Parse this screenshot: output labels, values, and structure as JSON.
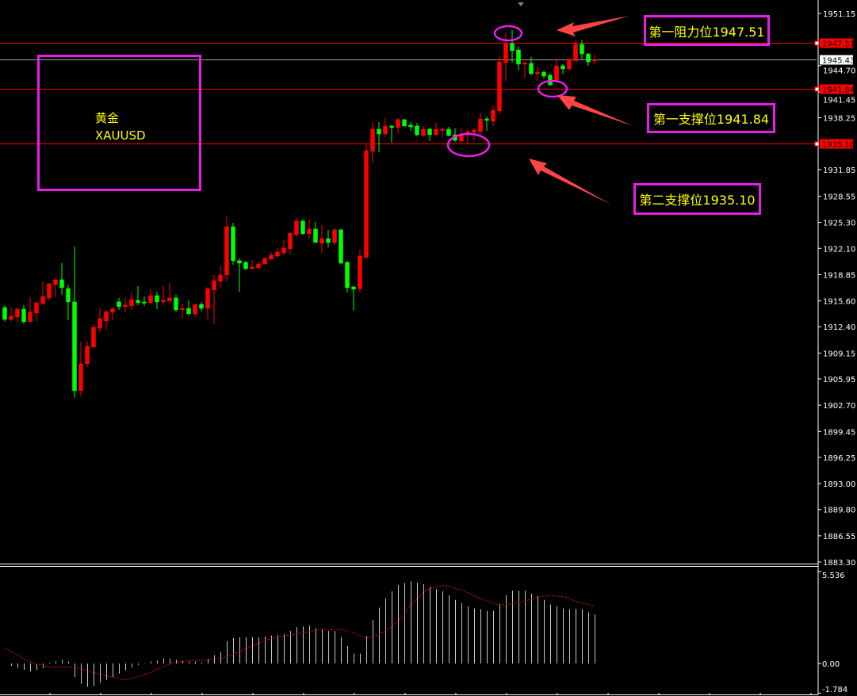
{
  "symbol_box": {
    "name_cn": "黄金",
    "ticker": "XAUUSD"
  },
  "annotations": [
    {
      "label": "第一阻力位1947.51"
    },
    {
      "label": "第一支撑位1941.84"
    },
    {
      "label": "第二支撑位1935.10"
    }
  ],
  "colors": {
    "background": "#000000",
    "up_candle": "#ff0000",
    "down_candle": "#00ff00",
    "level_line": "#ff0000",
    "bid_line": "#a0a0a0",
    "annotation_border": "#e81ee8",
    "annotation_text": "#ffff00",
    "arrow": "#ff4444",
    "histogram": "#c8c8c8",
    "signal_line": "#ff0000"
  },
  "chart_data": [
    {
      "type": "candlestick",
      "ohlc_order": [
        "open",
        "high",
        "low",
        "close"
      ],
      "up_color_meaning": "red = close above open, green = close below open",
      "ylim": [
        1883.3,
        1951.15
      ],
      "y_ticks": [
        "1951.15",
        "1944.70",
        "1941.45",
        "1938.25",
        "1931.85",
        "1928.55",
        "1925.30",
        "1922.10",
        "1918.85",
        "1915.60",
        "1912.40",
        "1909.15",
        "1905.95",
        "1902.70",
        "1899.45",
        "1896.25",
        "1893.00",
        "1889.80",
        "1886.55",
        "1883.30"
      ],
      "levels": [
        {
          "label": "1947.51",
          "value": 1947.51,
          "style": "red"
        },
        {
          "label": "1945.43",
          "value": 1945.43,
          "style": "bid"
        },
        {
          "label": "1941.84",
          "value": 1941.84,
          "style": "red"
        },
        {
          "label": "1935.10",
          "value": 1935.1,
          "style": "red"
        }
      ],
      "candles": [
        [
          1914.78,
          1914.98,
          1913.02,
          1913.31
        ],
        [
          1913.31,
          1914.78,
          1913.11,
          1913.7
        ],
        [
          1913.6,
          1914.68,
          1912.92,
          1914.59
        ],
        [
          1914.59,
          1915.08,
          1912.72,
          1913.02
        ],
        [
          1913.02,
          1916.06,
          1913.02,
          1914.19
        ],
        [
          1914.1,
          1915.37,
          1913.11,
          1915.37
        ],
        [
          1915.27,
          1918.02,
          1915.08,
          1916.15
        ],
        [
          1915.96,
          1917.82,
          1915.66,
          1917.72
        ],
        [
          1917.62,
          1918.41,
          1916.06,
          1918.21
        ],
        [
          1918.21,
          1920.27,
          1916.35,
          1917.23
        ],
        [
          1917.13,
          1917.62,
          1913.21,
          1915.47
        ],
        [
          1915.47,
          1922.33,
          1903.6,
          1904.49
        ],
        [
          1904.49,
          1910.57,
          1903.8,
          1907.82
        ],
        [
          1907.82,
          1910.66,
          1907.43,
          1909.98
        ],
        [
          1909.88,
          1912.72,
          1909.78,
          1912.33
        ],
        [
          1912.23,
          1914.68,
          1911.74,
          1913.41
        ],
        [
          1913.11,
          1914.39,
          1912.04,
          1914.29
        ],
        [
          1914.19,
          1914.88,
          1913.21,
          1914.59
        ],
        [
          1915.47,
          1915.96,
          1914.49,
          1914.88
        ],
        [
          1914.88,
          1916.06,
          1914.19,
          1915.08
        ],
        [
          1914.98,
          1916.64,
          1914.49,
          1915.76
        ],
        [
          1915.66,
          1917.43,
          1915.08,
          1915.37
        ],
        [
          1915.47,
          1916.15,
          1914.98,
          1915.37
        ],
        [
          1915.37,
          1917.04,
          1915.17,
          1916.25
        ],
        [
          1916.25,
          1916.74,
          1914.59,
          1915.47
        ],
        [
          1915.47,
          1917.53,
          1915.08,
          1915.66
        ],
        [
          1915.57,
          1917.82,
          1915.57,
          1915.96
        ],
        [
          1915.96,
          1916.35,
          1914.19,
          1914.49
        ],
        [
          1914.49,
          1915.27,
          1913.41,
          1914.68
        ],
        [
          1914.68,
          1915.66,
          1913.8,
          1914.0
        ],
        [
          1914.0,
          1915.17,
          1913.6,
          1915.17
        ],
        [
          1915.17,
          1915.47,
          1914.29,
          1914.68
        ],
        [
          1914.68,
          1917.33,
          1913.31,
          1917.13
        ],
        [
          1916.94,
          1918.8,
          1912.72,
          1918.11
        ],
        [
          1918.02,
          1919.88,
          1917.23,
          1918.8
        ],
        [
          1918.8,
          1926.06,
          1918.02,
          1924.78
        ],
        [
          1924.78,
          1925.27,
          1920.08,
          1920.57
        ],
        [
          1920.57,
          1920.86,
          1916.74,
          1920.27
        ],
        [
          1920.37,
          1920.57,
          1919.39,
          1919.59
        ],
        [
          1919.59,
          1920.66,
          1919.49,
          1919.78
        ],
        [
          1919.68,
          1920.47,
          1919.59,
          1920.17
        ],
        [
          1920.17,
          1920.96,
          1920.08,
          1920.86
        ],
        [
          1920.76,
          1921.64,
          1920.66,
          1921.25
        ],
        [
          1921.15,
          1922.13,
          1920.96,
          1921.64
        ],
        [
          1921.55,
          1923.11,
          1921.25,
          1922.13
        ],
        [
          1922.04,
          1924.0,
          1921.35,
          1924.0
        ],
        [
          1923.8,
          1925.86,
          1923.51,
          1925.47
        ],
        [
          1925.47,
          1925.66,
          1923.8,
          1923.9
        ],
        [
          1923.9,
          1925.66,
          1923.21,
          1924.49
        ],
        [
          1924.49,
          1925.37,
          1922.82,
          1922.82
        ],
        [
          1922.72,
          1924.98,
          1921.55,
          1923.31
        ],
        [
          1923.31,
          1924.39,
          1922.23,
          1922.82
        ],
        [
          1922.82,
          1924.59,
          1922.53,
          1924.39
        ],
        [
          1924.39,
          1924.49,
          1920.17,
          1920.27
        ],
        [
          1920.37,
          1920.57,
          1916.64,
          1917.23
        ],
        [
          1917.33,
          1917.43,
          1914.39,
          1917.04
        ],
        [
          1917.13,
          1921.94,
          1916.64,
          1921.15
        ],
        [
          1920.96,
          1934.98,
          1920.86,
          1934.19
        ],
        [
          1934.1,
          1937.72,
          1932.72,
          1936.84
        ],
        [
          1936.84,
          1937.72,
          1934.0,
          1936.25
        ],
        [
          1936.25,
          1938.21,
          1935.86,
          1937.23
        ],
        [
          1937.23,
          1937.33,
          1935.17,
          1937.04
        ],
        [
          1937.04,
          1938.21,
          1936.35,
          1938.02
        ],
        [
          1938.02,
          1938.11,
          1937.23,
          1937.23
        ],
        [
          1937.33,
          1937.72,
          1936.64,
          1937.13
        ],
        [
          1937.23,
          1937.62,
          1935.96,
          1936.15
        ],
        [
          1936.06,
          1937.23,
          1935.86,
          1936.84
        ],
        [
          1936.84,
          1937.04,
          1935.37,
          1936.15
        ],
        [
          1936.15,
          1937.62,
          1936.06,
          1936.84
        ],
        [
          1936.74,
          1937.04,
          1935.86,
          1936.84
        ],
        [
          1936.84,
          1937.13,
          1935.96,
          1936.06
        ],
        [
          1936.15,
          1936.94,
          1935.27,
          1935.47
        ],
        [
          1935.37,
          1936.94,
          1935.17,
          1936.15
        ],
        [
          1936.35,
          1936.84,
          1934.98,
          1936.55
        ],
        [
          1936.45,
          1937.04,
          1935.47,
          1936.74
        ],
        [
          1936.55,
          1938.9,
          1936.15,
          1938.11
        ],
        [
          1938.11,
          1938.41,
          1936.64,
          1937.92
        ],
        [
          1937.82,
          1939.78,
          1937.23,
          1939.19
        ],
        [
          1939.1,
          1945.86,
          1938.7,
          1945.17
        ],
        [
          1945.08,
          1948.8,
          1942.82,
          1947.43
        ],
        [
          1947.43,
          1949.1,
          1945.08,
          1946.55
        ],
        [
          1946.64,
          1947.04,
          1944.1,
          1944.88
        ],
        [
          1944.88,
          1945.08,
          1943.11,
          1945.08
        ],
        [
          1944.98,
          1945.76,
          1943.51,
          1943.7
        ],
        [
          1943.7,
          1944.59,
          1942.82,
          1943.9
        ],
        [
          1943.9,
          1944.0,
          1943.11,
          1943.41
        ],
        [
          1943.51,
          1943.7,
          1942.23,
          1942.33
        ],
        [
          1942.92,
          1945.57,
          1942.92,
          1944.68
        ],
        [
          1944.68,
          1944.88,
          1943.7,
          1944.29
        ],
        [
          1944.29,
          1945.66,
          1944.1,
          1945.47
        ],
        [
          1945.27,
          1947.82,
          1945.27,
          1947.33
        ],
        [
          1947.33,
          1947.82,
          1945.47,
          1946.15
        ],
        [
          1946.15,
          1946.25,
          1944.68,
          1945.17
        ],
        [
          1945.27,
          1946.06,
          1944.88,
          1945.47
        ]
      ]
    },
    {
      "type": "bar",
      "subtype": "oscillator histogram with signal line",
      "ylim": [
        -1.784,
        5.536
      ],
      "y_ticks": [
        "5.536",
        "0.00",
        "-1.784"
      ],
      "histogram": [
        0.02,
        -0.14,
        -0.27,
        -0.38,
        -0.47,
        -0.38,
        -0.28,
        0.05,
        0.12,
        0.22,
        0.12,
        -0.81,
        -1.22,
        -1.41,
        -1.36,
        -1.17,
        -0.98,
        -0.81,
        -0.61,
        -0.42,
        -0.23,
        -0.09,
        0,
        0.12,
        0.17,
        0.31,
        0.3,
        0.22,
        0.17,
        0.12,
        0.12,
        0.08,
        0.27,
        0.5,
        0.69,
        1.34,
        1.53,
        1.58,
        1.58,
        1.58,
        1.58,
        1.63,
        1.67,
        1.72,
        1.77,
        1.95,
        2.19,
        2.23,
        2.28,
        2.14,
        2.05,
        1.95,
        1.95,
        1.58,
        1.06,
        0.59,
        0.59,
        1.64,
        2.61,
        3.36,
        3.92,
        4.34,
        4.72,
        4.86,
        4.95,
        4.86,
        4.77,
        4.63,
        4.48,
        4.34,
        4.11,
        3.83,
        3.64,
        3.45,
        3.31,
        3.27,
        3.17,
        3.17,
        3.59,
        4.11,
        4.39,
        4.39,
        4.39,
        4.2,
        4.06,
        3.83,
        3.55,
        3.45,
        3.31,
        3.27,
        3.31,
        3.27,
        3.08,
        2.94
      ],
      "signal": [
        0.91,
        0.72,
        0.52,
        0.28,
        0.12,
        -0.03,
        -0.11,
        -0.19,
        -0.22,
        -0.19,
        -0.19,
        -0.27,
        -0.33,
        -0.42,
        -0.55,
        -0.64,
        -0.73,
        -0.81,
        -0.91,
        -1.0,
        -0.89,
        -0.81,
        -0.66,
        -0.55,
        -0.34,
        -0.19,
        -0.03,
        0.08,
        0.12,
        0.16,
        0.19,
        0.2,
        0.2,
        0.25,
        0.3,
        0.41,
        0.56,
        0.72,
        0.88,
        1.06,
        1.23,
        1.38,
        1.5,
        1.59,
        1.67,
        1.72,
        1.77,
        1.83,
        1.91,
        2.0,
        2.02,
        2.02,
        2.06,
        2.06,
        1.95,
        1.84,
        1.67,
        1.53,
        1.61,
        1.73,
        1.95,
        2.19,
        2.55,
        2.94,
        3.48,
        3.88,
        4.3,
        4.5,
        4.61,
        4.7,
        4.66,
        4.53,
        4.42,
        4.27,
        4.08,
        3.91,
        3.77,
        3.64,
        3.53,
        3.53,
        3.61,
        3.67,
        3.77,
        3.86,
        3.98,
        4.05,
        4.08,
        4.06,
        4.02,
        3.94,
        3.72,
        3.64,
        3.55,
        3.45
      ]
    }
  ]
}
